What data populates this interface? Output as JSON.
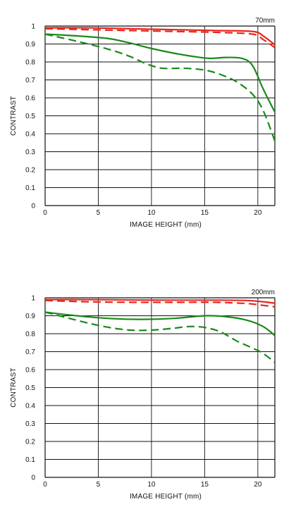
{
  "chart_data": [
    {
      "type": "line",
      "focal_label": "70mm",
      "xlabel": "IMAGE HEIGHT (mm)",
      "ylabel": "CONTRAST",
      "xlim": [
        0,
        21.6
      ],
      "ylim": [
        0,
        1
      ],
      "xticks": [
        0,
        5,
        10,
        15,
        20
      ],
      "xtick_labels": [
        "0",
        "5",
        "10",
        "15",
        "20"
      ],
      "yticks": [
        0,
        0.1,
        0.2,
        0.3,
        0.4,
        0.5,
        0.6,
        0.7,
        0.8,
        0.9,
        1
      ],
      "ytick_labels": [
        "0",
        "0.1",
        "0.2",
        "0.3",
        "0.4",
        "0.5",
        "0.6",
        "0.7",
        "0.8",
        "0.9",
        "1"
      ],
      "grid": true,
      "series": [
        {
          "color": "#e8261e",
          "dash": false,
          "x": [
            0,
            4,
            8,
            12,
            16,
            19.5,
            20.5,
            21.6
          ],
          "y": [
            0.99,
            0.99,
            0.985,
            0.98,
            0.975,
            0.97,
            0.945,
            0.895
          ]
        },
        {
          "color": "#e8261e",
          "dash": true,
          "x": [
            0,
            4,
            8,
            12,
            16,
            19.5,
            20.5,
            21.6
          ],
          "y": [
            0.985,
            0.98,
            0.975,
            0.97,
            0.965,
            0.955,
            0.925,
            0.88
          ]
        },
        {
          "color": "#1a8a1a",
          "dash": false,
          "x": [
            0,
            3,
            6,
            8,
            10,
            12,
            14,
            15.5,
            17,
            18.5,
            19.5,
            20.5,
            21.6
          ],
          "y": [
            0.955,
            0.945,
            0.93,
            0.905,
            0.875,
            0.85,
            0.83,
            0.82,
            0.825,
            0.82,
            0.78,
            0.65,
            0.52
          ]
        },
        {
          "color": "#1a8a1a",
          "dash": true,
          "x": [
            0,
            3,
            6,
            8,
            9.5,
            11,
            13,
            15,
            16.5,
            18,
            19.5,
            20.5,
            21.6
          ],
          "y": [
            0.955,
            0.915,
            0.87,
            0.83,
            0.79,
            0.765,
            0.765,
            0.755,
            0.73,
            0.69,
            0.62,
            0.53,
            0.36
          ]
        }
      ]
    },
    {
      "type": "line",
      "focal_label": "200mm",
      "xlabel": "IMAGE HEIGHT (mm)",
      "ylabel": "CONTRAST",
      "xlim": [
        0,
        21.6
      ],
      "ylim": [
        0,
        1
      ],
      "xticks": [
        0,
        5,
        10,
        15,
        20
      ],
      "xtick_labels": [
        "0",
        "5",
        "10",
        "15",
        "20"
      ],
      "yticks": [
        0,
        0.1,
        0.2,
        0.3,
        0.4,
        0.5,
        0.6,
        0.7,
        0.8,
        0.9,
        1
      ],
      "ytick_labels": [
        "0",
        "0.1",
        "0.2",
        "0.3",
        "0.4",
        "0.5",
        "0.6",
        "0.7",
        "0.8",
        "0.9",
        "1"
      ],
      "grid": true,
      "series": [
        {
          "color": "#e8261e",
          "dash": false,
          "x": [
            0,
            4,
            8,
            12,
            16,
            19,
            20.5,
            21.6
          ],
          "y": [
            0.99,
            0.99,
            0.988,
            0.987,
            0.987,
            0.985,
            0.978,
            0.97
          ]
        },
        {
          "color": "#e8261e",
          "dash": true,
          "x": [
            0,
            4,
            8,
            12,
            16,
            19,
            20.5,
            21.6
          ],
          "y": [
            0.985,
            0.978,
            0.975,
            0.975,
            0.975,
            0.968,
            0.958,
            0.95
          ]
        },
        {
          "color": "#1a8a1a",
          "dash": false,
          "x": [
            0,
            3,
            6,
            9,
            12,
            15,
            17,
            19,
            20.5,
            21.6
          ],
          "y": [
            0.92,
            0.9,
            0.885,
            0.88,
            0.885,
            0.9,
            0.895,
            0.875,
            0.84,
            0.79
          ]
        },
        {
          "color": "#1a8a1a",
          "dash": true,
          "x": [
            0,
            2,
            4,
            6,
            8,
            10,
            12,
            13.5,
            15,
            16.5,
            18,
            19.5,
            20.5,
            21.6
          ],
          "y": [
            0.92,
            0.89,
            0.86,
            0.835,
            0.82,
            0.82,
            0.83,
            0.84,
            0.835,
            0.81,
            0.76,
            0.72,
            0.69,
            0.64
          ]
        }
      ]
    }
  ]
}
